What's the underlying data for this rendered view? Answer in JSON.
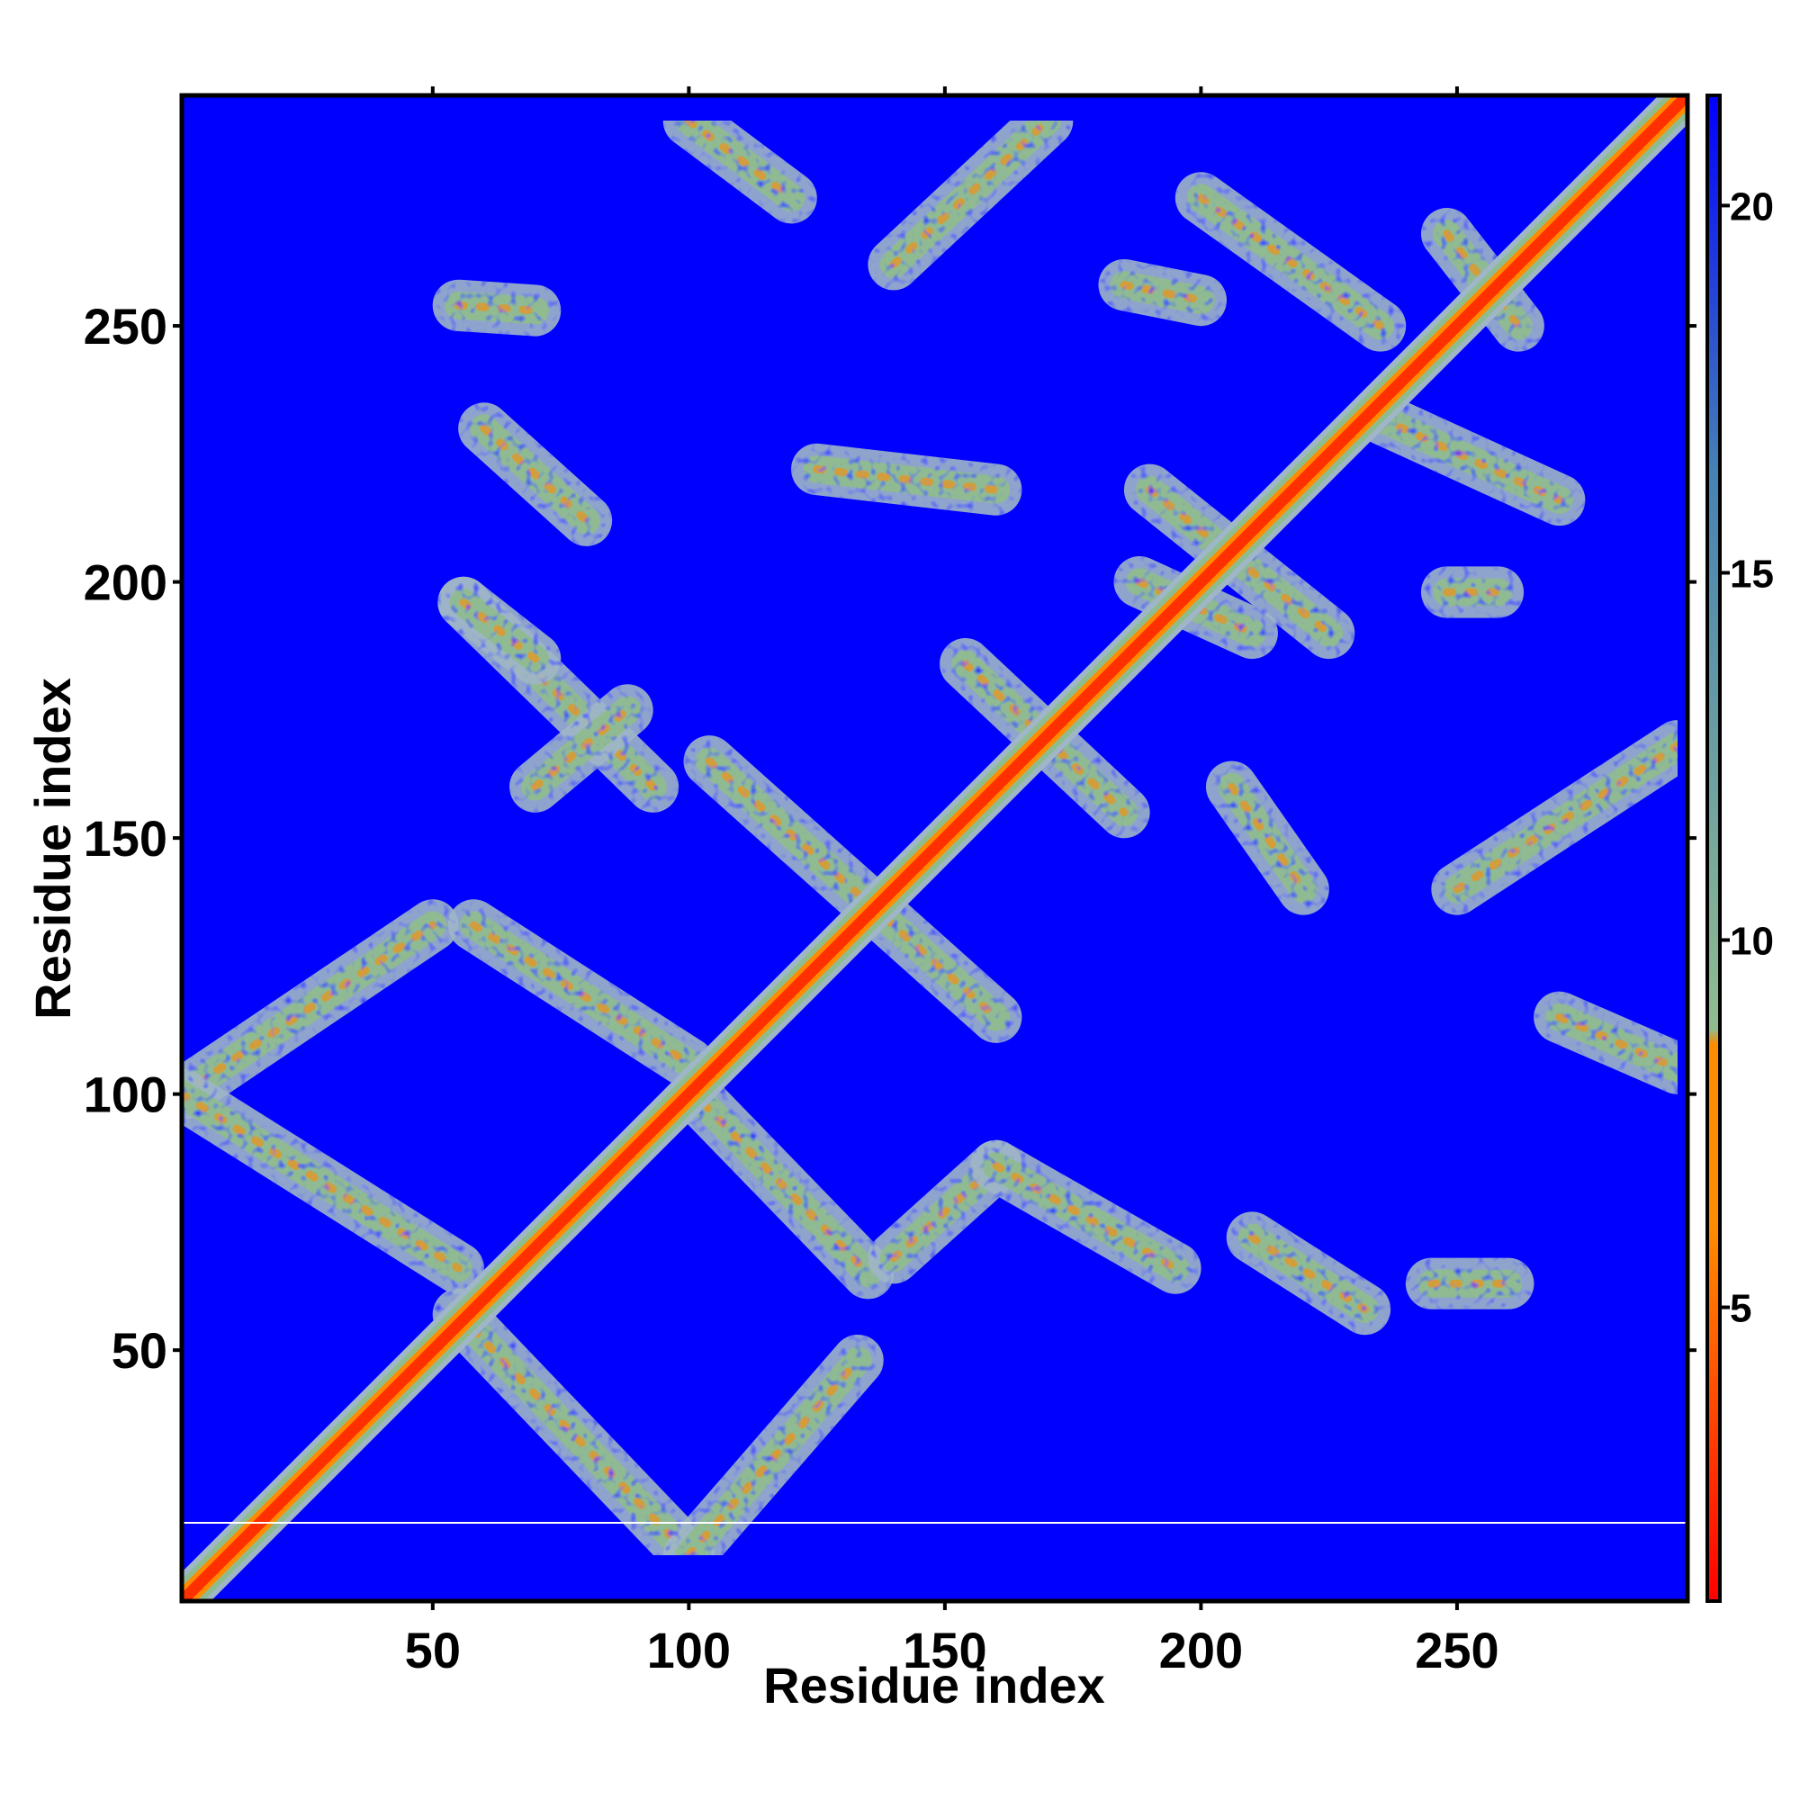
{
  "chart_data": {
    "type": "heatmap",
    "title": "",
    "xlabel": "Residue index",
    "ylabel": "Residue index",
    "xlim": [
      1,
      295
    ],
    "ylim": [
      1,
      295
    ],
    "xticks": [
      50,
      100,
      150,
      200,
      250
    ],
    "yticks": [
      50,
      100,
      150,
      200,
      250
    ],
    "colorbar": {
      "ticks": [
        5,
        10,
        15,
        20
      ],
      "range": [
        1,
        21.5
      ],
      "colors": [
        "#ff0000",
        "#ff8c00",
        "#8fbc8f",
        "#4682b4",
        "#0000ff"
      ]
    },
    "background_value": 21.5,
    "background_color": "#0000ff",
    "diagonal": {
      "from": [
        1,
        1
      ],
      "to": [
        295,
        295
      ],
      "width_residues": 8
    },
    "contact_bands": [
      {
        "from": [
          1,
          100
        ],
        "to": [
          50,
          133
        ]
      },
      {
        "from": [
          1,
          100
        ],
        "to": [
          55,
          66
        ]
      },
      {
        "from": [
          55,
          57
        ],
        "to": [
          100,
          10
        ]
      },
      {
        "from": [
          100,
          10
        ],
        "to": [
          133,
          48
        ]
      },
      {
        "from": [
          58,
          133
        ],
        "to": [
          100,
          106
        ]
      },
      {
        "from": [
          56,
          196
        ],
        "to": [
          93,
          160
        ]
      },
      {
        "from": [
          56,
          196
        ],
        "to": [
          70,
          185
        ]
      },
      {
        "from": [
          70,
          160
        ],
        "to": [
          88,
          175
        ]
      },
      {
        "from": [
          104,
          165
        ],
        "to": [
          160,
          115
        ]
      },
      {
        "from": [
          103,
          98
        ],
        "to": [
          135,
          65
        ]
      },
      {
        "from": [
          140,
          68
        ],
        "to": [
          160,
          86
        ]
      },
      {
        "from": [
          160,
          86
        ],
        "to": [
          195,
          66
        ]
      },
      {
        "from": [
          60,
          230
        ],
        "to": [
          80,
          212
        ]
      },
      {
        "from": [
          55,
          254
        ],
        "to": [
          70,
          253
        ]
      },
      {
        "from": [
          100,
          290
        ],
        "to": [
          120,
          275
        ]
      },
      {
        "from": [
          140,
          262
        ],
        "to": [
          170,
          290
        ]
      },
      {
        "from": [
          125,
          222
        ],
        "to": [
          160,
          218
        ]
      },
      {
        "from": [
          190,
          218
        ],
        "to": [
          225,
          190
        ]
      },
      {
        "from": [
          188,
          200
        ],
        "to": [
          210,
          190
        ]
      },
      {
        "from": [
          200,
          275
        ],
        "to": [
          235,
          250
        ]
      },
      {
        "from": [
          185,
          258
        ],
        "to": [
          200,
          255
        ]
      },
      {
        "from": [
          235,
          232
        ],
        "to": [
          270,
          216
        ]
      },
      {
        "from": [
          248,
          268
        ],
        "to": [
          262,
          250
        ]
      },
      {
        "from": [
          248,
          198
        ],
        "to": [
          258,
          198
        ]
      },
      {
        "from": [
          154,
          184
        ],
        "to": [
          185,
          155
        ]
      },
      {
        "from": [
          206,
          160
        ],
        "to": [
          220,
          140
        ]
      },
      {
        "from": [
          210,
          72
        ],
        "to": [
          232,
          58
        ]
      },
      {
        "from": [
          245,
          63
        ],
        "to": [
          260,
          63
        ]
      },
      {
        "from": [
          250,
          140
        ],
        "to": [
          293,
          168
        ]
      },
      {
        "from": [
          270,
          115
        ],
        "to": [
          293,
          105
        ]
      }
    ]
  }
}
